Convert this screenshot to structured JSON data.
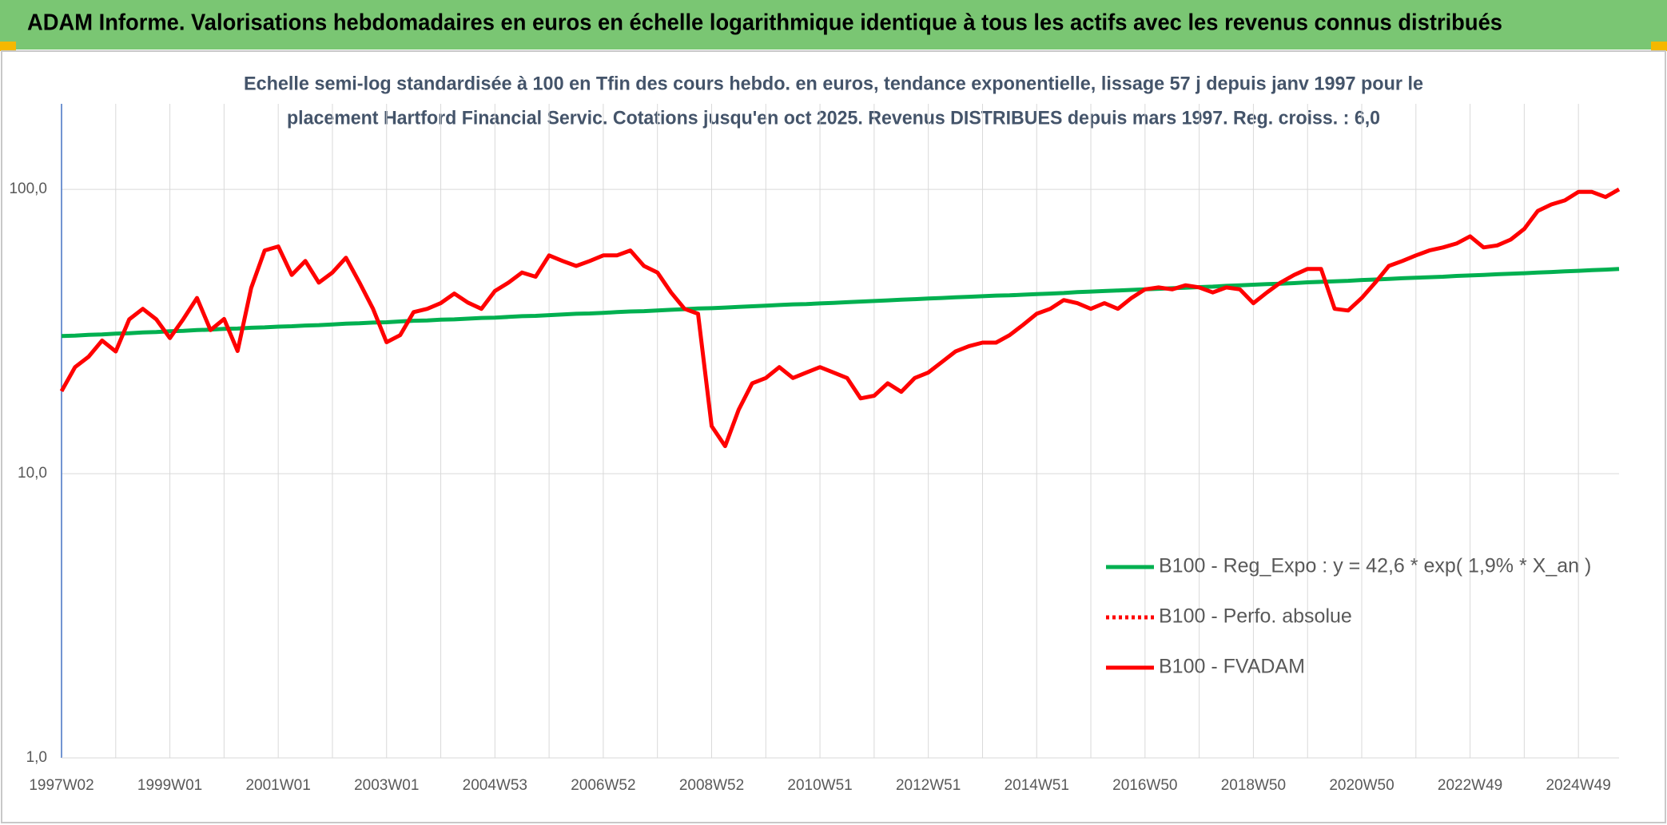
{
  "header": {
    "title": "ADAM Informe. Valorisations hebdomadaires en euros en échelle logarithmique identique à tous les actifs avec les revenus connus distribués"
  },
  "chart_data": {
    "type": "line",
    "subtitle": [
      "Echelle semi-log standardisée à 100 en Tfin des cours hebdo. en euros, tendance exponentielle, lissage 57 j depuis janv 1997 pour le",
      "placement Hartford Financial Servic. Cotations jusqu'en oct 2025. Revenus DISTRIBUES depuis mars 1997. Reg. croiss. : 6,0"
    ],
    "log": true,
    "grid": true,
    "legend": "lower-right",
    "ylim": [
      1,
      200
    ],
    "yticks": [
      {
        "value": 1,
        "label": "1,0"
      },
      {
        "value": 10,
        "label": "10,0"
      },
      {
        "value": 100,
        "label": "100,0"
      }
    ],
    "categories": [
      "1997W02",
      null,
      null,
      null,
      null,
      null,
      null,
      null,
      "1999W01",
      null,
      null,
      null,
      null,
      null,
      null,
      null,
      "2001W01",
      null,
      null,
      null,
      null,
      null,
      null,
      null,
      "2003W01",
      null,
      null,
      null,
      null,
      null,
      null,
      null,
      "2004W53",
      null,
      null,
      null,
      null,
      null,
      null,
      null,
      "2006W52",
      null,
      null,
      null,
      null,
      null,
      null,
      null,
      "2008W52",
      null,
      null,
      null,
      null,
      null,
      null,
      null,
      "2010W51",
      null,
      null,
      null,
      null,
      null,
      null,
      null,
      "2012W51",
      null,
      null,
      null,
      null,
      null,
      null,
      null,
      "2014W51",
      null,
      null,
      null,
      null,
      null,
      null,
      null,
      "2016W50",
      null,
      null,
      null,
      null,
      null,
      null,
      null,
      "2018W50",
      null,
      null,
      null,
      null,
      null,
      null,
      null,
      "2020W50",
      null,
      null,
      null,
      null,
      null,
      null,
      null,
      "2022W49",
      null,
      null,
      null,
      null,
      null,
      null,
      null,
      "2024W49",
      null,
      null,
      null
    ],
    "series": [
      {
        "name": "B100 - Reg_Expo : y = 42,6 * exp( 1,9% *  X_an )",
        "color": "#00b050",
        "style": "solid",
        "values": [
          30.5,
          30.6,
          30.8,
          30.9,
          31.1,
          31.2,
          31.4,
          31.5,
          31.7,
          31.8,
          32.0,
          32.1,
          32.3,
          32.4,
          32.6,
          32.7,
          32.9,
          33.0,
          33.2,
          33.3,
          33.5,
          33.7,
          33.8,
          34.0,
          34.1,
          34.3,
          34.5,
          34.6,
          34.8,
          34.9,
          35.1,
          35.3,
          35.4,
          35.6,
          35.8,
          35.9,
          36.1,
          36.3,
          36.5,
          36.6,
          36.8,
          37.0,
          37.2,
          37.3,
          37.5,
          37.7,
          37.9,
          38.1,
          38.2,
          38.4,
          38.6,
          38.8,
          39.0,
          39.2,
          39.4,
          39.5,
          39.7,
          39.9,
          40.1,
          40.3,
          40.5,
          40.7,
          40.9,
          41.1,
          41.3,
          41.5,
          41.7,
          41.9,
          42.1,
          42.3,
          42.4,
          42.6,
          42.8,
          43.0,
          43.2,
          43.5,
          43.7,
          43.9,
          44.1,
          44.3,
          44.5,
          44.7,
          44.9,
          45.1,
          45.3,
          45.5,
          45.8,
          46.0,
          46.2,
          46.4,
          46.6,
          46.8,
          47.1,
          47.3,
          47.5,
          47.7,
          48.0,
          48.2,
          48.4,
          48.7,
          48.9,
          49.1,
          49.3,
          49.6,
          49.8,
          50.0,
          50.3,
          50.5,
          50.7,
          51.0,
          51.2,
          51.5,
          51.7,
          52.0,
          52.2,
          52.5
        ]
      },
      {
        "name": "B100 - Perfo. absolue",
        "color": "#ff0000",
        "style": "dotted",
        "values": [
          null,
          null,
          null,
          null,
          null,
          null,
          null,
          null,
          null,
          null,
          null,
          null,
          null,
          null,
          null,
          null,
          null,
          null,
          null,
          null,
          null,
          null,
          null,
          null,
          null,
          null,
          null,
          null,
          null,
          null,
          null,
          null,
          null,
          null,
          null,
          null,
          null,
          null,
          null,
          null,
          null,
          null,
          null,
          null,
          null,
          null,
          null,
          null,
          null,
          null,
          null,
          null,
          null,
          null,
          null,
          null,
          null,
          null,
          null,
          null,
          null,
          null,
          null,
          null,
          null,
          null,
          null,
          null,
          null,
          null,
          null,
          null,
          null,
          null,
          null,
          null,
          null,
          null,
          null,
          null,
          null,
          null,
          null,
          null,
          null,
          null,
          null,
          null,
          null,
          null,
          null,
          null,
          null,
          null,
          null,
          null,
          null,
          null,
          null,
          null,
          null,
          null,
          null,
          null,
          null,
          null,
          null,
          null,
          null,
          null,
          null,
          null,
          null,
          null,
          null,
          null
        ]
      },
      {
        "name": "B100 - FVADAM",
        "color": "#ff0000",
        "style": "solid",
        "values": [
          19.5,
          23.7,
          25.8,
          29.4,
          26.9,
          34.9,
          38.0,
          34.9,
          30.0,
          35.0,
          41.5,
          32.0,
          35.0,
          27.0,
          45.0,
          61.0,
          63.0,
          50.0,
          56.0,
          47.0,
          51.0,
          57.5,
          47.0,
          38.0,
          29.0,
          30.7,
          37.0,
          38.0,
          39.8,
          43.0,
          40.0,
          38.0,
          43.9,
          47.0,
          51.0,
          49.3,
          58.6,
          56.0,
          53.8,
          56.0,
          58.6,
          58.6,
          61.0,
          53.8,
          51.0,
          43.4,
          38.0,
          36.5,
          14.7,
          12.5,
          16.8,
          20.8,
          21.7,
          23.7,
          21.7,
          22.7,
          23.7,
          22.7,
          21.7,
          18.4,
          18.8,
          20.8,
          19.4,
          21.7,
          22.7,
          24.7,
          26.9,
          28.1,
          28.9,
          28.9,
          30.7,
          33.4,
          36.5,
          38.0,
          40.8,
          39.8,
          38.0,
          39.8,
          38.0,
          41.5,
          44.5,
          45.2,
          44.5,
          46.0,
          45.2,
          43.4,
          45.2,
          44.5,
          39.8,
          43.4,
          47.0,
          50.0,
          52.5,
          52.5,
          38.0,
          37.5,
          41.5,
          47.0,
          53.8,
          56.0,
          58.6,
          61.0,
          62.5,
          64.5,
          68.4,
          62.5,
          63.5,
          66.6,
          72.6,
          84.0,
          88.5,
          91.5,
          98.0,
          98.0,
          94.0,
          100.0
        ]
      }
    ]
  }
}
